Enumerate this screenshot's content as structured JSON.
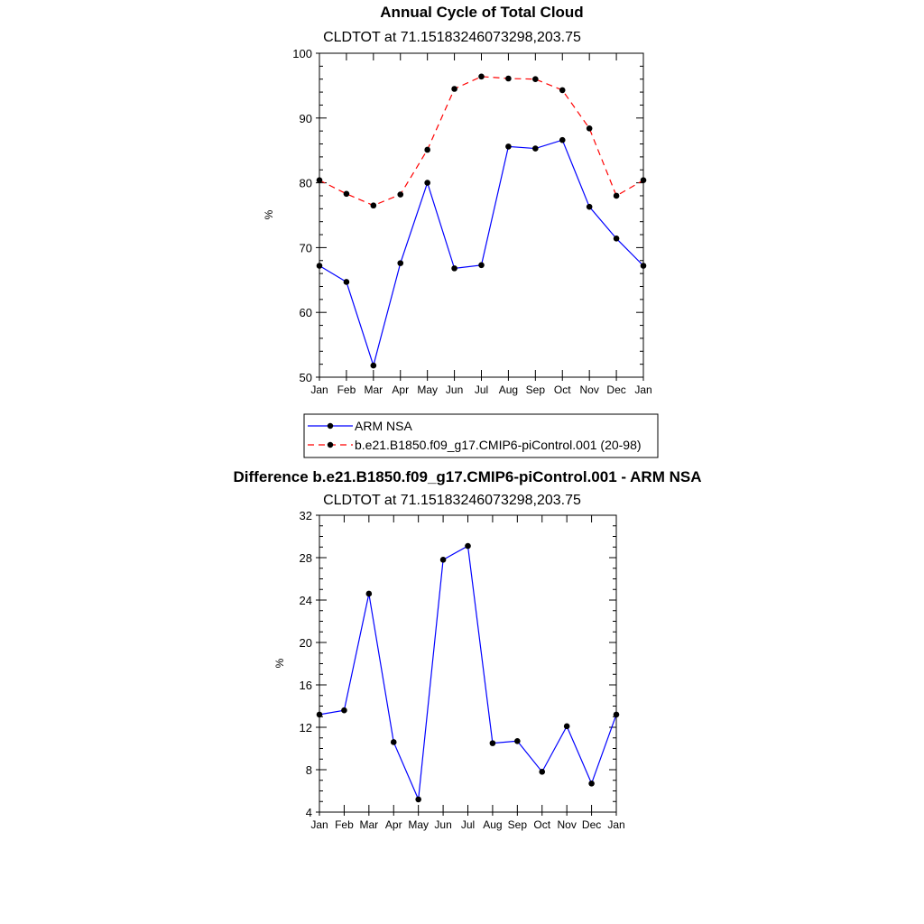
{
  "colors": {
    "obs_line": "#0000ff",
    "model_line": "#ff0000",
    "marker": "#000000",
    "diff_line": "#0000ff"
  },
  "chart_data": [
    {
      "type": "line",
      "title": "Annual Cycle of Total Cloud",
      "subtitle": "CLDTOT at 71.15183246073298,203.75",
      "xlabel": "",
      "ylabel": "%",
      "categories": [
        "Jan",
        "Feb",
        "Mar",
        "Apr",
        "May",
        "Jun",
        "Jul",
        "Aug",
        "Sep",
        "Oct",
        "Nov",
        "Dec",
        "Jan"
      ],
      "ylim": [
        50,
        100
      ],
      "yticks": [
        50,
        60,
        70,
        80,
        90,
        100
      ],
      "grid": false,
      "legend_position": "bottom",
      "series": [
        {
          "name": "ARM NSA",
          "style": "solid",
          "values": [
            67.2,
            64.7,
            51.8,
            67.6,
            80.0,
            66.8,
            67.3,
            85.6,
            85.3,
            86.6,
            76.3,
            71.4,
            67.2
          ]
        },
        {
          "name": "b.e21.B1850.f09_g17.CMIP6-piControl.001 (20-98)",
          "style": "dashed",
          "values": [
            80.4,
            78.3,
            76.5,
            78.2,
            85.1,
            94.5,
            96.4,
            96.1,
            96.0,
            94.3,
            88.4,
            78.0,
            80.4
          ]
        }
      ]
    },
    {
      "type": "line",
      "title": "Difference b.e21.B1850.f09_g17.CMIP6-piControl.001 - ARM NSA",
      "subtitle": "CLDTOT at 71.15183246073298,203.75",
      "xlabel": "",
      "ylabel": "%",
      "categories": [
        "Jan",
        "Feb",
        "Mar",
        "Apr",
        "May",
        "Jun",
        "Jul",
        "Aug",
        "Sep",
        "Oct",
        "Nov",
        "Dec",
        "Jan"
      ],
      "ylim": [
        4,
        32
      ],
      "yticks": [
        4,
        8,
        12,
        16,
        20,
        24,
        28,
        32
      ],
      "grid": false,
      "series": [
        {
          "name": "Difference",
          "style": "solid",
          "values": [
            13.2,
            13.6,
            24.6,
            10.6,
            5.2,
            27.8,
            29.1,
            10.5,
            10.7,
            7.8,
            12.1,
            6.7,
            13.2
          ]
        }
      ]
    }
  ]
}
